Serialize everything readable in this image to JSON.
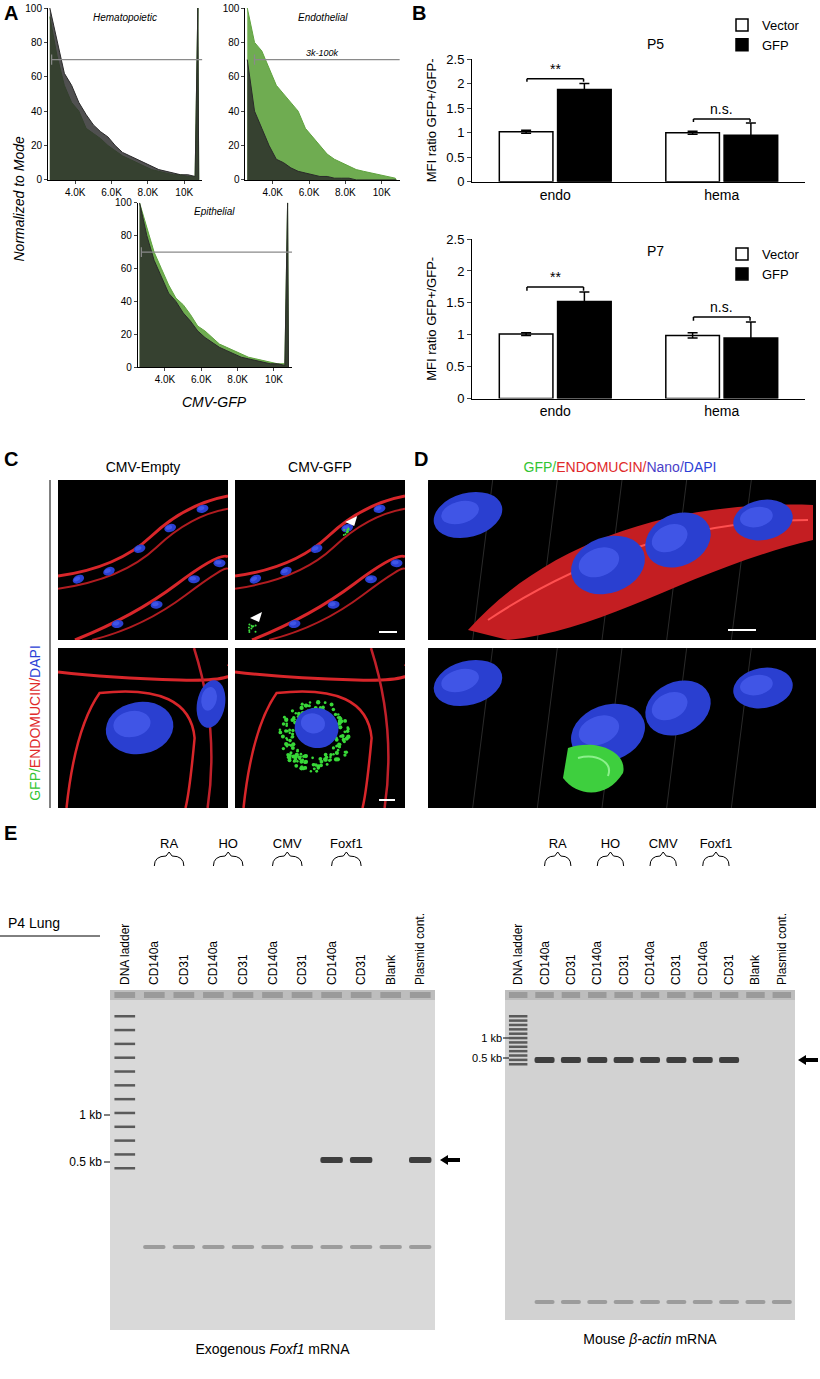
{
  "panel_labels": [
    "A",
    "B",
    "C",
    "D",
    "E"
  ],
  "shared_axes": {
    "x_title": "CMV-GFP",
    "y_title": "Normalized to Mode"
  },
  "chart_data": [
    {
      "type": "area",
      "title": "Hematopoietic",
      "x": [
        2600,
        3000,
        3400,
        3800,
        4200,
        4600,
        5000,
        5400,
        5800,
        6200,
        6600,
        7000,
        7400,
        7800,
        8200,
        8600,
        9000,
        9400,
        9800,
        10200,
        10600,
        10750,
        10800
      ],
      "series": [
        {
          "color": "#5fa33e",
          "values": [
            95,
            72,
            55,
            45,
            40,
            30,
            27,
            24,
            20,
            17,
            14,
            12,
            10,
            8,
            6,
            5,
            4,
            3,
            3,
            2,
            2,
            100,
            0
          ]
        },
        {
          "color": "#2a2a2a",
          "values": [
            100,
            80,
            62,
            55,
            45,
            38,
            32,
            28,
            25,
            20,
            16,
            14,
            12,
            10,
            8,
            6,
            5,
            4,
            3,
            3,
            2,
            100,
            0
          ]
        }
      ],
      "xlim": [
        2500,
        11000
      ],
      "xticks": [
        {
          "value": 4000,
          "label": "4.0K"
        },
        {
          "value": 6000,
          "label": "6.0K"
        },
        {
          "value": 8000,
          "label": "8.0K"
        },
        {
          "value": 10000,
          "label": "10K"
        }
      ],
      "ylim": [
        0,
        100
      ],
      "yticks": [
        0,
        20,
        40,
        60,
        80,
        100
      ],
      "gate": {
        "y": 70,
        "x0": 2700
      }
    },
    {
      "type": "area",
      "title": "Endothelial",
      "x": [
        2600,
        3000,
        3400,
        3800,
        4200,
        4600,
        5000,
        5400,
        5800,
        6200,
        6600,
        7000,
        7400,
        7800,
        8200,
        8600,
        9000,
        9400,
        9800,
        10200,
        10600,
        10750,
        10800
      ],
      "series": [
        {
          "color": "#5fa33e",
          "values": [
            100,
            80,
            75,
            65,
            55,
            50,
            45,
            40,
            30,
            25,
            20,
            15,
            12,
            10,
            8,
            6,
            5,
            4,
            3,
            2,
            1,
            1,
            0
          ]
        },
        {
          "color": "#2a2a2a",
          "values": [
            70,
            40,
            30,
            20,
            12,
            10,
            7,
            5,
            4,
            3,
            2,
            2,
            1,
            1,
            1,
            0,
            0,
            0,
            0,
            0,
            0,
            0,
            0
          ]
        }
      ],
      "xlim": [
        2500,
        11000
      ],
      "xticks": [
        {
          "value": 4000,
          "label": "4.0K"
        },
        {
          "value": 6000,
          "label": "6.0K"
        },
        {
          "value": 8000,
          "label": "8.0K"
        },
        {
          "value": 10000,
          "label": "10K"
        }
      ],
      "ylim": [
        0,
        100
      ],
      "yticks": [
        0,
        20,
        40,
        60,
        80,
        100
      ],
      "gate": {
        "y": 70,
        "x0": 3000,
        "label": "3k-100k"
      }
    },
    {
      "type": "area",
      "title": "Epithelial",
      "x": [
        2600,
        3000,
        3400,
        3800,
        4200,
        4600,
        5000,
        5400,
        5800,
        6200,
        6600,
        7000,
        7400,
        7800,
        8200,
        8600,
        9000,
        9400,
        9800,
        10200,
        10600,
        10750,
        10800
      ],
      "series": [
        {
          "color": "#5fa33e",
          "values": [
            100,
            85,
            70,
            60,
            50,
            42,
            38,
            32,
            25,
            22,
            18,
            14,
            12,
            10,
            8,
            6,
            5,
            4,
            3,
            2,
            2,
            100,
            0
          ]
        },
        {
          "color": "#2a2a2a",
          "values": [
            100,
            80,
            65,
            55,
            45,
            40,
            33,
            28,
            22,
            18,
            15,
            12,
            10,
            8,
            6,
            5,
            4,
            3,
            2,
            2,
            1,
            100,
            0
          ]
        }
      ],
      "xlim": [
        2500,
        11000
      ],
      "xticks": [
        {
          "value": 4000,
          "label": "4.0K"
        },
        {
          "value": 6000,
          "label": "6.0K"
        },
        {
          "value": 8000,
          "label": "8.0K"
        },
        {
          "value": 10000,
          "label": "10K"
        }
      ],
      "ylim": [
        0,
        100
      ],
      "yticks": [
        0,
        20,
        40,
        60,
        80,
        100
      ],
      "gate": {
        "y": 70,
        "x0": 2700
      }
    },
    {
      "type": "bar",
      "title": "P5",
      "ylabel": "MFI ratio GFP+/GFP-",
      "categories": [
        "endo",
        "hema"
      ],
      "series": [
        {
          "name": "Vector",
          "color": "#ffffff",
          "values": [
            1.02,
            1.0
          ],
          "errors": [
            0.03,
            0.03
          ]
        },
        {
          "name": "GFP",
          "color": "#000000",
          "values": [
            1.88,
            0.95
          ],
          "errors": [
            0.12,
            0.25
          ]
        }
      ],
      "ylim": [
        0,
        2.5
      ],
      "yticks": [
        0,
        0.5,
        1,
        1.5,
        2,
        2.5
      ],
      "legend": "top right",
      "annotations": [
        {
          "category": "endo",
          "text": "**",
          "y": 2.1
        },
        {
          "category": "hema",
          "text": "n.s.",
          "y": 1.28
        }
      ]
    },
    {
      "type": "bar",
      "title": "P7",
      "ylabel": "MFI ratio GFP+/GFP-",
      "categories": [
        "endo",
        "hema"
      ],
      "series": [
        {
          "name": "Vector",
          "color": "#ffffff",
          "values": [
            1.01,
            0.99
          ],
          "errors": [
            0.02,
            0.04
          ]
        },
        {
          "name": "GFP",
          "color": "#000000",
          "values": [
            1.52,
            0.95
          ],
          "errors": [
            0.15,
            0.25
          ]
        }
      ],
      "ylim": [
        0,
        2.5
      ],
      "yticks": [
        0,
        0.5,
        1,
        1.5,
        2,
        2.5
      ],
      "legend": "top right",
      "annotations": [
        {
          "category": "endo",
          "text": "**",
          "y": 1.75
        },
        {
          "category": "hema",
          "text": "n.s.",
          "y": 1.28
        }
      ]
    }
  ],
  "microscopy": {
    "C": {
      "columns": [
        "CMV-Empty",
        "CMV-GFP"
      ],
      "stain": [
        {
          "text": "GFP/",
          "color": "#33c433"
        },
        {
          "text": "ENDOMUCIN/",
          "color": "#e02a2a"
        },
        {
          "text": "DAPI",
          "color": "#2b3fd6"
        }
      ]
    },
    "D": {
      "stain": [
        {
          "text": "GFP/",
          "color": "#33c433"
        },
        {
          "text": "ENDOMUCIN/",
          "color": "#e02a2a"
        },
        {
          "text": "Nano/",
          "color": "#4b3fc8"
        },
        {
          "text": "DAPI",
          "color": "#2b3fd6"
        }
      ]
    }
  },
  "gels": [
    {
      "sample": "P4 Lung",
      "ladder": "DNA ladder",
      "groups": [
        {
          "label": "RA",
          "lanes": [
            "CD140a",
            "CD31"
          ]
        },
        {
          "label": "HO",
          "lanes": [
            "CD140a",
            "CD31"
          ]
        },
        {
          "label": "CMV",
          "lanes": [
            "CD140a",
            "CD31"
          ]
        },
        {
          "label": "Foxf1",
          "lanes": [
            "CD140a",
            "CD31"
          ]
        }
      ],
      "extra_lanes": [
        "Blank",
        "Plasmid cont."
      ],
      "size_marks": [
        "1 kb",
        "0.5 kb"
      ],
      "bands": [
        false,
        false,
        false,
        false,
        false,
        false,
        true,
        true,
        false,
        true
      ],
      "caption": {
        "text": "Exogenous Foxf1 mRNA",
        "italic": "Foxf1"
      }
    },
    {
      "ladder": "DNA ladder",
      "groups": [
        {
          "label": "RA",
          "lanes": [
            "CD140a",
            "CD31"
          ]
        },
        {
          "label": "HO",
          "lanes": [
            "CD140a",
            "CD31"
          ]
        },
        {
          "label": "CMV",
          "lanes": [
            "CD140a",
            "CD31"
          ]
        },
        {
          "label": "Foxf1",
          "lanes": [
            "CD140a",
            "CD31"
          ]
        }
      ],
      "extra_lanes": [
        "Blank",
        "Plasmid cont."
      ],
      "size_marks": [
        "1 kb",
        "0.5 kb"
      ],
      "bands": [
        true,
        true,
        true,
        true,
        true,
        true,
        true,
        true,
        false,
        false
      ],
      "caption": {
        "text": "Mouse β-actin mRNA",
        "italic": "β-actin"
      }
    }
  ]
}
